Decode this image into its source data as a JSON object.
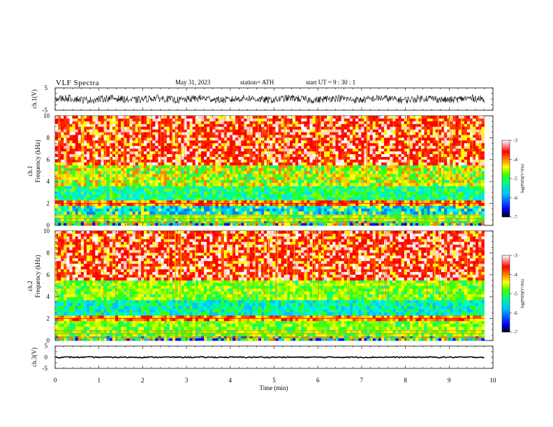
{
  "header": {
    "title": "VLF  Spectra",
    "date": "May 31, 2023",
    "station": "station= ATH",
    "start_ut": "start  UT  =   9  : 30 : 1"
  },
  "chart_data": [
    {
      "type": "line",
      "name": "ch1-waveform",
      "ylabel": "ch.1(V)",
      "ylim": [
        -5,
        5
      ],
      "yticks": [
        "5",
        "-5"
      ],
      "xlim": [
        0,
        10
      ]
    },
    {
      "type": "heatmap",
      "name": "ch1-spectrogram",
      "ylabel_top": "ch.1",
      "ylabel": "Frequency  (kHz)",
      "ylim": [
        0,
        10
      ],
      "yticks": [
        "0",
        "2",
        "4",
        "6",
        "8",
        "10"
      ],
      "xlim": [
        0,
        9.8
      ],
      "colorbar": {
        "label": "log(PSD)(V²/Hz)",
        "range": [
          -7,
          -3
        ],
        "ticks": [
          "-3",
          "-4",
          "-5",
          "-6",
          "-7"
        ]
      },
      "bands": [
        {
          "from_khz": 0.0,
          "to_khz": 0.4,
          "level": "mixed"
        },
        {
          "from_khz": 0.4,
          "to_khz": 1.0,
          "level": "green-yellow"
        },
        {
          "from_khz": 1.0,
          "to_khz": 1.8,
          "level": "cyan-blue"
        },
        {
          "from_khz": 1.8,
          "to_khz": 2.3,
          "level": "red-yellow"
        },
        {
          "from_khz": 2.3,
          "to_khz": 3.6,
          "level": "green-cyan"
        },
        {
          "from_khz": 3.6,
          "to_khz": 5.5,
          "level": "yellow-green"
        },
        {
          "from_khz": 5.5,
          "to_khz": 10.0,
          "level": "red"
        }
      ]
    },
    {
      "type": "heatmap",
      "name": "ch2-spectrogram",
      "ylabel_top": "ch.2",
      "ylabel": "Frequency  (kHz)",
      "ylim": [
        0,
        10
      ],
      "yticks": [
        "0",
        "2",
        "4",
        "6",
        "8",
        "10"
      ],
      "xlim": [
        0,
        9.8
      ],
      "colorbar": {
        "label": "log(PSD)(V²/Hz)",
        "range": [
          -7,
          -3
        ],
        "ticks": [
          "-3",
          "-4",
          "-5",
          "-6",
          "-7"
        ]
      },
      "bands": [
        {
          "from_khz": 0.0,
          "to_khz": 0.4,
          "level": "mixed"
        },
        {
          "from_khz": 0.4,
          "to_khz": 1.8,
          "level": "green-yellow"
        },
        {
          "from_khz": 1.8,
          "to_khz": 2.3,
          "level": "red-yellow"
        },
        {
          "from_khz": 2.3,
          "to_khz": 3.7,
          "level": "cyan-green"
        },
        {
          "from_khz": 3.7,
          "to_khz": 5.5,
          "level": "green-yellow"
        },
        {
          "from_khz": 5.5,
          "to_khz": 10.0,
          "level": "red"
        }
      ]
    },
    {
      "type": "line",
      "name": "ch3-waveform",
      "ylabel": "ch.3(V)",
      "ylim": [
        -5,
        5
      ],
      "yticks": [
        "5",
        "0",
        "-5"
      ],
      "xlim": [
        0,
        10
      ],
      "level_v": 0
    }
  ],
  "xaxis": {
    "label": "Time  (min)",
    "range": [
      0,
      10
    ],
    "ticks": [
      "0",
      "1",
      "2",
      "3",
      "4",
      "5",
      "6",
      "7",
      "8",
      "9",
      "10"
    ]
  },
  "colormap": [
    "#000000",
    "#0000ff",
    "#00c0ff",
    "#00ff90",
    "#40ff00",
    "#ffff00",
    "#ff8000",
    "#ff0000",
    "#ffffff"
  ]
}
